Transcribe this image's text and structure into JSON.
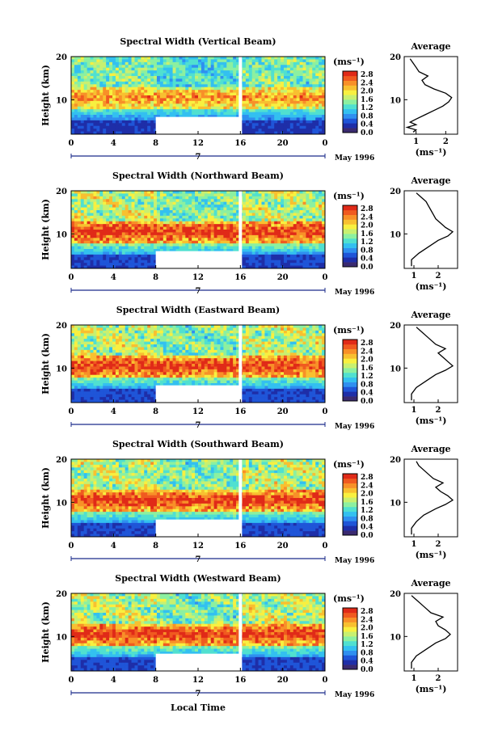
{
  "figure": {
    "ylabel": "Height (km)",
    "xlabel": "Local Time",
    "day_label": "7",
    "month_label": "May 1996",
    "colorbar_unit": "(ms⁻¹)",
    "avg_title": "Average",
    "avg_xlabel": "(ms⁻¹)"
  },
  "colors": {
    "colormap": [
      "#3a2a70",
      "#1e2ea8",
      "#1f55d8",
      "#2f8ff0",
      "#33c0f0",
      "#50e0d0",
      "#8cf0a0",
      "#c8f070",
      "#f8f040",
      "#f8c030",
      "#f89028",
      "#f05a20",
      "#e02a18"
    ],
    "axis": "#000000",
    "gap": "#ffffff"
  },
  "chart_data": [
    {
      "type": "heatmap",
      "title": "Spectral Width (Vertical Beam)",
      "x_ticks": [
        "0",
        "4",
        "8",
        "12",
        "16",
        "20",
        "0"
      ],
      "y_ticks": [
        "20",
        "10"
      ],
      "xlim": [
        0,
        24
      ],
      "ylim": [
        2,
        20
      ],
      "colorbar_ticks": [
        "2.8",
        "2.4",
        "2.0",
        "1.6",
        "1.2",
        "0.8",
        "0.4",
        "0.0"
      ],
      "avg_x_ticks": [
        "1",
        "2"
      ],
      "avg_xlim": [
        0.6,
        2.4
      ],
      "avg_profile": [
        [
          0.9,
          2.5
        ],
        [
          1.0,
          3
        ],
        [
          0.7,
          3.6
        ],
        [
          1.0,
          4.2
        ],
        [
          0.8,
          4.8
        ],
        [
          1.0,
          5.5
        ],
        [
          1.3,
          6.5
        ],
        [
          1.6,
          7.5
        ],
        [
          1.9,
          8.5
        ],
        [
          2.1,
          9.5
        ],
        [
          2.2,
          10.5
        ],
        [
          2.0,
          11.5
        ],
        [
          1.6,
          12.5
        ],
        [
          1.3,
          13.5
        ],
        [
          1.2,
          14.5
        ],
        [
          1.4,
          15.5
        ],
        [
          1.1,
          16.5
        ],
        [
          1.0,
          17.5
        ],
        [
          0.9,
          18.5
        ],
        [
          0.8,
          19.5
        ]
      ]
    },
    {
      "type": "heatmap",
      "title": "Spectral Width (Northward Beam)",
      "x_ticks": [
        "0",
        "4",
        "8",
        "12",
        "16",
        "20",
        "0"
      ],
      "y_ticks": [
        "20",
        "10"
      ],
      "xlim": [
        0,
        24
      ],
      "ylim": [
        2,
        20
      ],
      "colorbar_ticks": [
        "2.8",
        "2.4",
        "2.0",
        "1.6",
        "1.2",
        "0.8",
        "0.4",
        "0.0"
      ],
      "avg_x_ticks": [
        "1",
        "2"
      ],
      "avg_xlim": [
        0.6,
        2.8
      ],
      "avg_profile": [
        [
          0.9,
          2.5
        ],
        [
          0.9,
          4
        ],
        [
          1.2,
          5.5
        ],
        [
          1.6,
          7
        ],
        [
          2.0,
          8.5
        ],
        [
          2.4,
          9.5
        ],
        [
          2.6,
          10.5
        ],
        [
          2.3,
          11.5
        ],
        [
          2.1,
          12.5
        ],
        [
          1.9,
          13.5
        ],
        [
          1.8,
          14.5
        ],
        [
          1.7,
          15.5
        ],
        [
          1.6,
          16.5
        ],
        [
          1.5,
          17.5
        ],
        [
          1.3,
          18.5
        ],
        [
          1.1,
          19.5
        ]
      ]
    },
    {
      "type": "heatmap",
      "title": "Spectral Width (Eastward Beam)",
      "x_ticks": [
        "0",
        "4",
        "8",
        "12",
        "16",
        "20",
        "0"
      ],
      "y_ticks": [
        "20",
        "10"
      ],
      "xlim": [
        0,
        24
      ],
      "ylim": [
        2,
        20
      ],
      "colorbar_ticks": [
        "2.8",
        "2.4",
        "2.0",
        "1.6",
        "1.2",
        "0.8",
        "0.4",
        "0.0"
      ],
      "avg_x_ticks": [
        "1",
        "2"
      ],
      "avg_xlim": [
        0.6,
        2.8
      ],
      "avg_profile": [
        [
          0.9,
          2.5
        ],
        [
          0.9,
          4
        ],
        [
          1.1,
          5.5
        ],
        [
          1.5,
          7
        ],
        [
          1.9,
          8.5
        ],
        [
          2.3,
          9.5
        ],
        [
          2.6,
          10.5
        ],
        [
          2.4,
          11.5
        ],
        [
          2.2,
          12.5
        ],
        [
          2.0,
          13.5
        ],
        [
          2.3,
          14.5
        ],
        [
          1.9,
          15.5
        ],
        [
          1.7,
          16.5
        ],
        [
          1.5,
          17.5
        ],
        [
          1.3,
          18.5
        ],
        [
          1.1,
          19.5
        ]
      ]
    },
    {
      "type": "heatmap",
      "title": "Spectral Width (Southward Beam)",
      "x_ticks": [
        "0",
        "4",
        "8",
        "12",
        "16",
        "20",
        "0"
      ],
      "y_ticks": [
        "20",
        "10"
      ],
      "xlim": [
        0,
        24
      ],
      "ylim": [
        2,
        20
      ],
      "colorbar_ticks": [
        "2.8",
        "2.4",
        "2.0",
        "1.6",
        "1.2",
        "0.8",
        "0.4",
        "0.0"
      ],
      "avg_x_ticks": [
        "1",
        "2"
      ],
      "avg_xlim": [
        0.6,
        2.8
      ],
      "avg_profile": [
        [
          0.9,
          2.5
        ],
        [
          0.9,
          4
        ],
        [
          1.1,
          5.5
        ],
        [
          1.4,
          7
        ],
        [
          1.9,
          8.5
        ],
        [
          2.3,
          9.5
        ],
        [
          2.6,
          10.5
        ],
        [
          2.4,
          11.5
        ],
        [
          2.1,
          12.5
        ],
        [
          1.9,
          13.5
        ],
        [
          2.2,
          14.5
        ],
        [
          1.8,
          15.5
        ],
        [
          1.6,
          16.5
        ],
        [
          1.4,
          17.5
        ],
        [
          1.2,
          18.5
        ],
        [
          1.1,
          19.5
        ]
      ]
    },
    {
      "type": "heatmap",
      "title": "Spectral Width (Westward Beam)",
      "x_ticks": [
        "0",
        "4",
        "8",
        "12",
        "16",
        "20",
        "0"
      ],
      "y_ticks": [
        "20",
        "10"
      ],
      "xlim": [
        0,
        24
      ],
      "ylim": [
        2,
        20
      ],
      "colorbar_ticks": [
        "2.8",
        "2.4",
        "2.0",
        "1.6",
        "1.2",
        "0.8",
        "0.4",
        "0.0"
      ],
      "avg_x_ticks": [
        "1",
        "2"
      ],
      "avg_xlim": [
        0.6,
        2.8
      ],
      "avg_profile": [
        [
          0.9,
          2.5
        ],
        [
          0.9,
          4
        ],
        [
          1.1,
          5.5
        ],
        [
          1.5,
          7
        ],
        [
          1.9,
          8.5
        ],
        [
          2.3,
          9.5
        ],
        [
          2.5,
          10.5
        ],
        [
          2.3,
          11.5
        ],
        [
          2.0,
          12.5
        ],
        [
          1.9,
          13.5
        ],
        [
          2.2,
          14.5
        ],
        [
          1.7,
          15.5
        ],
        [
          1.5,
          16.5
        ],
        [
          1.3,
          17.5
        ],
        [
          1.1,
          18.5
        ],
        [
          0.9,
          19.5
        ]
      ]
    }
  ]
}
